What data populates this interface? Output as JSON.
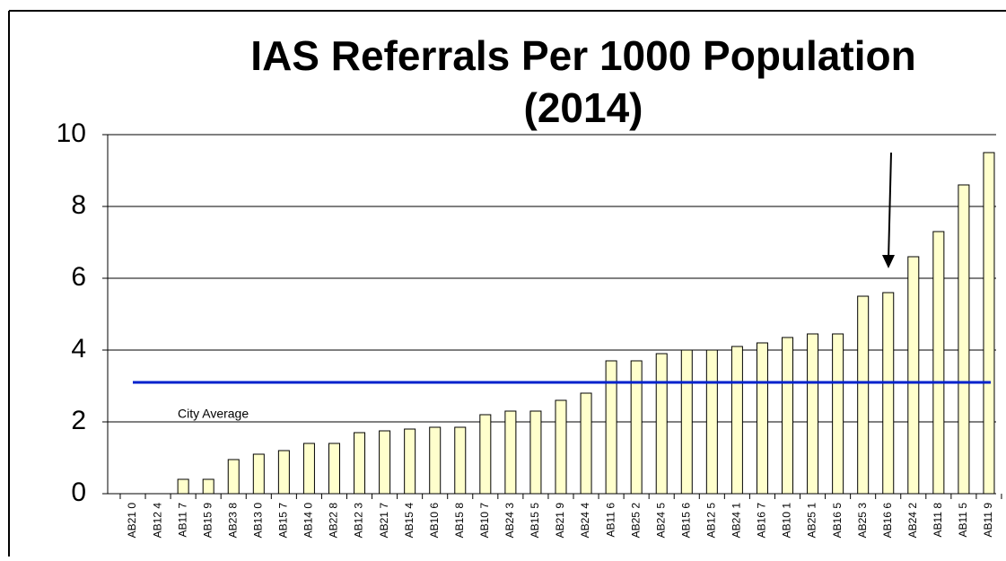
{
  "chart_data": {
    "type": "bar",
    "title": [
      "IAS Referrals Per 1000 Population",
      "(2014)"
    ],
    "categories": [
      "AB21 0",
      "AB12 4",
      "AB11 7",
      "AB15 9",
      "AB23 8",
      "AB13 0",
      "AB15 7",
      "AB14 0",
      "AB22 8",
      "AB12 3",
      "AB21 7",
      "AB15 4",
      "AB10 6",
      "AB15 8",
      "AB10 7",
      "AB24 3",
      "AB15 5",
      "AB21 9",
      "AB24 4",
      "AB11 6",
      "AB25 2",
      "AB24 5",
      "AB15 6",
      "AB12 5",
      "AB24 1",
      "AB16 7",
      "AB10 1",
      "AB25 1",
      "AB16 5",
      "AB25 3",
      "AB16 6",
      "AB24 2",
      "AB11 8",
      "AB11 5",
      "AB11 9"
    ],
    "values": [
      0,
      0,
      0.4,
      0.4,
      0.95,
      1.1,
      1.2,
      1.4,
      1.4,
      1.7,
      1.75,
      1.8,
      1.85,
      1.85,
      2.2,
      2.3,
      2.3,
      2.6,
      2.8,
      3.7,
      3.7,
      3.9,
      4.0,
      4.0,
      4.1,
      4.2,
      4.35,
      4.45,
      4.45,
      5.5,
      5.6,
      6.6,
      7.3,
      8.6,
      9.5
    ],
    "color": "#ffffcc",
    "ylim": [
      0,
      10
    ],
    "yticks": [
      0,
      2,
      4,
      6,
      8,
      10
    ],
    "grid": true,
    "reference_line": {
      "value": 3.1,
      "label": "City Average",
      "color": "#0022cc"
    }
  }
}
